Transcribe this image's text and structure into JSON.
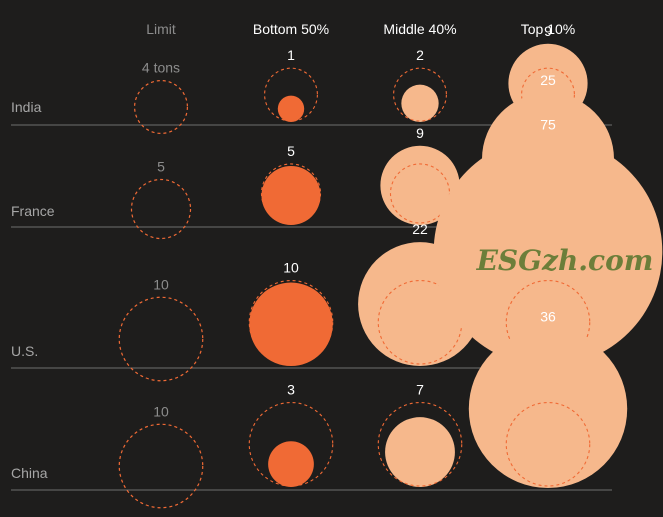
{
  "chart_data": {
    "type": "bubble",
    "unit": "tons",
    "columns": [
      "Limit",
      "Bottom 50%",
      "Middle 40%",
      "Top 10%"
    ],
    "rows": [
      {
        "country": "India",
        "limit": 4,
        "bottom50": 1,
        "middle40": 2,
        "top10": 9
      },
      {
        "country": "France",
        "limit": 5,
        "bottom50": 5,
        "middle40": 9,
        "top10": 25
      },
      {
        "country": "U.S.",
        "limit": 10,
        "bottom50": 10,
        "middle40": 22,
        "top10": 75
      },
      {
        "country": "China",
        "limit": 10,
        "bottom50": 3,
        "middle40": 7,
        "top10": 36
      }
    ],
    "value_labels": {
      "India": [
        "4 tons",
        "1",
        "2",
        "9"
      ],
      "France": [
        "5",
        "5",
        "9",
        "25"
      ],
      "U.S.": [
        "10",
        "10",
        "22",
        "75"
      ],
      "China": [
        "10",
        "3",
        "7",
        "36"
      ]
    }
  },
  "colors": {
    "background": "#1e1d1c",
    "bottom_fill": "#f06a35",
    "light_fill": "#f6b88c",
    "limit_stroke": "#f06a35",
    "baseline": "#6e6e6e",
    "muted_text": "#8c8c8c",
    "text": "#ffffff"
  },
  "watermark": "ESGzh.com"
}
